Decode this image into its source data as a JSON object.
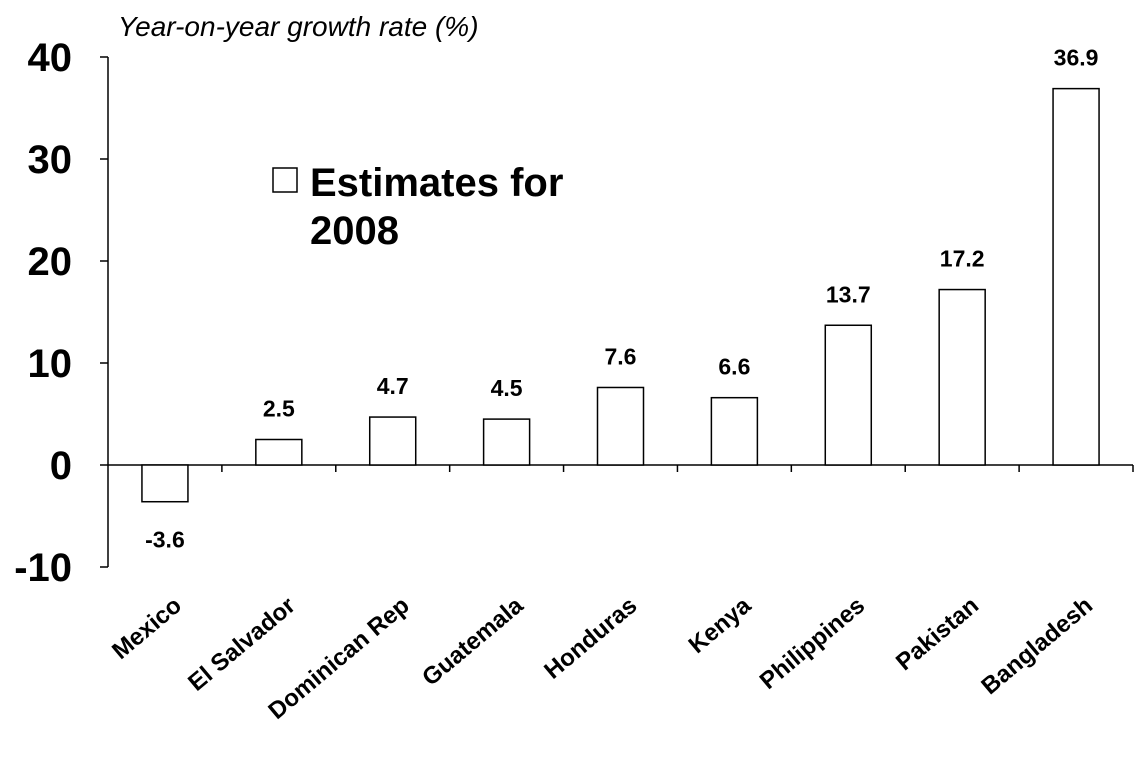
{
  "chart_data": {
    "type": "bar",
    "ylabel": "Year-on-year growth rate (%)",
    "xlabel": "",
    "ylim": [
      -10,
      40
    ],
    "yticks": [
      "40",
      "30",
      "20",
      "10",
      "0",
      "-10"
    ],
    "ytick_values": [
      40,
      30,
      20,
      10,
      0,
      -10
    ],
    "categories": [
      "Mexico",
      "El Salvador",
      "Dominican Rep",
      "Guatemala",
      "Honduras",
      "Kenya",
      "Philippines",
      "Pakistan",
      "Bangladesh"
    ],
    "series": [
      {
        "name": "Estimates for 2008",
        "values": [
          -3.6,
          2.5,
          4.7,
          4.5,
          7.6,
          6.6,
          13.7,
          17.2,
          36.9
        ],
        "labels": [
          "-3.6",
          "2.5",
          "4.7",
          "4.5",
          "7.6",
          "6.6",
          "13.7",
          "17.2",
          "36.9"
        ]
      }
    ],
    "legend": {
      "placement": "upper-left",
      "line1": "Estimates for",
      "line2": "2008"
    },
    "grid": false,
    "colors": {
      "bar_fill": "#ffffff",
      "bar_stroke": "#000000",
      "axis": "#000000"
    }
  }
}
